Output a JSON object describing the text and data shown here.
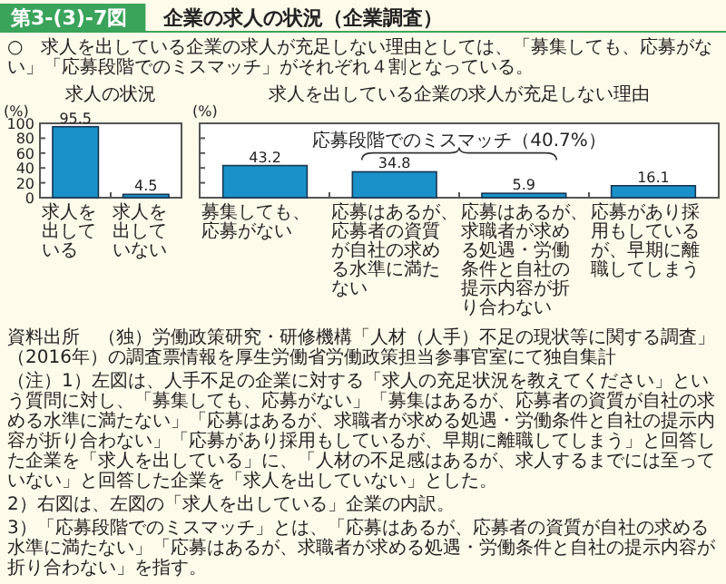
{
  "chart_data": [
    {
      "type": "other",
      "title": "企業の求人の状況（企業調査）",
      "subtitle": "○　求人を出している企業の求人が充足しない理由としては、「募集しても、応募がない」「応募段階でのミスマッチ」がそれぞれ４割となっている。",
      "annotations": [
        "第3-(3)-7図"
      ]
    },
    {
      "type": "bar",
      "title": "求人の状況",
      "ylabel": "(%)",
      "categories": [
        "求人を出している",
        "求人を出していない"
      ],
      "values": [
        95.5,
        4.5
      ],
      "color": "#1a91c9",
      "ylim": [
        0,
        100
      ],
      "yticks": [
        0,
        20,
        40,
        60,
        80,
        100
      ],
      "data_labels": true
    },
    {
      "type": "bar",
      "title": "求人を出している企業の求人が充足しない理由",
      "ylabel": "(%)",
      "categories": [
        "募集しても、応募がない",
        "応募はあるが、応募者の資質が自社の求める水準に満たない",
        "応募はあるが、求職者が求める処遇・労働条件と自社の提示内容が折り合わない",
        "応募があり採用もしているが、早期に離職してしまう"
      ],
      "values": [
        43.2,
        34.8,
        5.9,
        16.1
      ],
      "color": "#1a91c9",
      "ylim": [
        0,
        100
      ],
      "yticks": [
        0,
        20,
        40,
        60,
        80,
        100
      ],
      "tick_labels": "x",
      "data_labels": true,
      "annotations": [
        "応募段階でのミスマッチ（40.7%）"
      ]
    },
    {
      "type": "other",
      "annotations": [
        "資料出所　（独）労働政策研究・研修機構「人材（人手）不足の現状等に関する調査」（2016年）の調査票情報を厚生労働省労働政策担当参事官室にて独自集計",
        "（注）1）左図は、人手不足の企業に対する「求人の充足状況を教えてください」という質問に対し、「募集しても、応募がない」「募集はあるが、応募者の資質が自社の求める水準に満たない」「応募はあるが、求職者が求める処遇・労働条件と自社の提示内容が折り合わない」「応募があり採用もしているが、早期に離職してしまう」と回答した企業を「求人を出している」に、「人材の不足感はあるが、求人するまでには至っていない」と回答した企業を「求人を出していない」とした。",
        "2）右図は、左図の「求人を出している」企業の内訳。",
        "3）「応募段階でのミスマッチ」とは、「応募はあるが、応募者の資質が自社の求める水準に満たない」「応募はあるが、求職者が求める処遇・労働条件と自社の提示内容が折り合わない」を指す。"
      ]
    }
  ]
}
